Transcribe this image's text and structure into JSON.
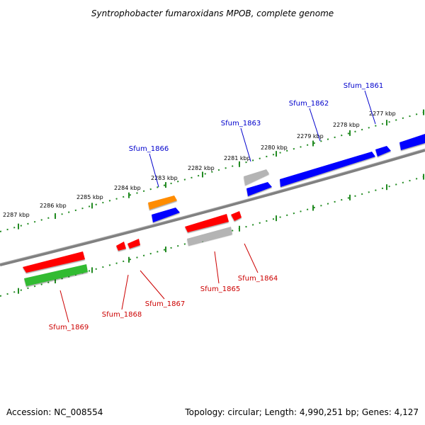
{
  "title": "Syntrophobacter fumaroxidans MPOB, complete genome",
  "footer": {
    "accession": "Accession: NC_008554",
    "summary": "Topology: circular; Length: 4,990,251 bp; Genes: 4,127"
  },
  "colors": {
    "forward_label": "#0000cc",
    "reverse_label": "#cc0000",
    "ticks": "#228b22",
    "backbone": "#808080",
    "gene_blue": "#0000ff",
    "gene_red": "#ff0000",
    "gene_green": "#33bb33",
    "gene_orange": "#ff8c00",
    "gene_gray": "#b4b4b4"
  },
  "kbp_labels": [
    "2287 kbp",
    "2286 kbp",
    "2285 kbp",
    "2284 kbp",
    "2283 kbp",
    "2282 kbp",
    "2281 kbp",
    "2280 kbp",
    "2279 kbp",
    "2278 kbp",
    "2277 kbp"
  ],
  "gene_labels": [
    {
      "name": "Sfum_1861",
      "strand": "forward"
    },
    {
      "name": "Sfum_1862",
      "strand": "forward"
    },
    {
      "name": "Sfum_1863",
      "strand": "forward"
    },
    {
      "name": "Sfum_1866",
      "strand": "forward"
    },
    {
      "name": "Sfum_1864",
      "strand": "reverse"
    },
    {
      "name": "Sfum_1865",
      "strand": "reverse"
    },
    {
      "name": "Sfum_1867",
      "strand": "reverse"
    },
    {
      "name": "Sfum_1868",
      "strand": "reverse"
    },
    {
      "name": "Sfum_1869",
      "strand": "reverse"
    }
  ]
}
